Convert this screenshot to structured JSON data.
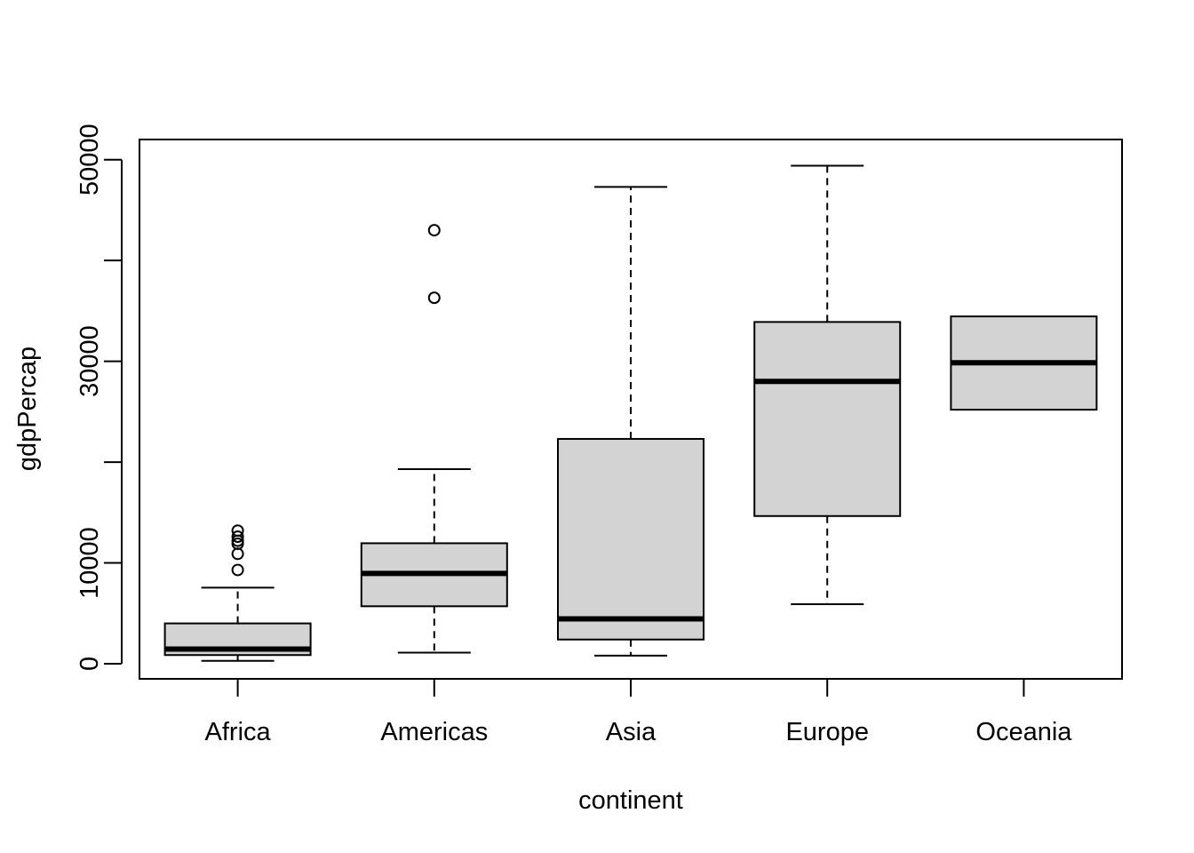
{
  "chart_data": {
    "type": "boxplot",
    "title": "",
    "xlabel": "continent",
    "ylabel": "gdpPercap",
    "ylim": [
      -1500,
      52000
    ],
    "yticks": [
      0,
      10000,
      20000,
      30000,
      40000,
      50000
    ],
    "ytick_labels": [
      "0",
      "10000",
      "",
      "30000",
      "",
      "50000"
    ],
    "grid": false,
    "box_fill": "#d3d3d3",
    "stroke_color": "#000000",
    "categories": [
      "Africa",
      "Americas",
      "Asia",
      "Europe",
      "Oceania"
    ],
    "boxes": [
      {
        "category": "Africa",
        "lower_whisker": 280,
        "q1": 860,
        "median": 1450,
        "q3": 4000,
        "upper_whisker": 7550,
        "outliers": [
          9300,
          10900,
          11900,
          12200,
          12600,
          13200
        ]
      },
      {
        "category": "Americas",
        "lower_whisker": 1100,
        "q1": 5700,
        "median": 8950,
        "q3": 11950,
        "upper_whisker": 19300,
        "outliers": [
          36300,
          43000
        ]
      },
      {
        "category": "Asia",
        "lower_whisker": 800,
        "q1": 2400,
        "median": 4450,
        "q3": 22300,
        "upper_whisker": 47300,
        "outliers": []
      },
      {
        "category": "Europe",
        "lower_whisker": 5900,
        "q1": 14650,
        "median": 28000,
        "q3": 33900,
        "upper_whisker": 49400,
        "outliers": []
      },
      {
        "category": "Oceania",
        "lower_whisker": 25200,
        "q1": 25200,
        "median": 29850,
        "q3": 34450,
        "upper_whisker": 34450,
        "outliers": []
      }
    ]
  }
}
